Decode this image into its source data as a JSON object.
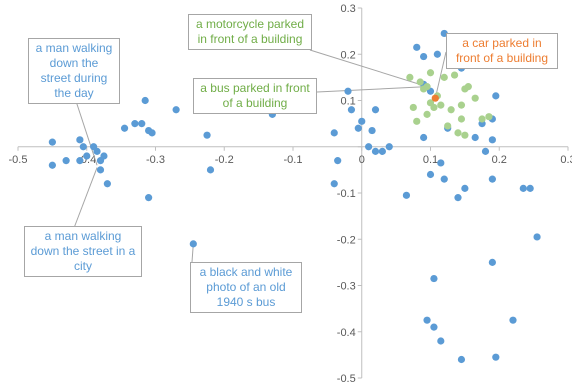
{
  "colors": {
    "blue": "#5b9bd5",
    "green": "#a9d18e",
    "orange": "#ed7d31",
    "axis": "#bfbfbf",
    "label_green": "#70ad47"
  },
  "chart_data": {
    "type": "scatter",
    "title": "",
    "xlabel": "",
    "ylabel": "",
    "xlim": [
      -0.5,
      0.3
    ],
    "ylim": [
      -0.5,
      0.3
    ],
    "grid": false,
    "x_ticks": [
      "-0.5",
      "-0.4",
      "-0.3",
      "-0.2",
      "-0.1",
      "0",
      "0.1",
      "0.2",
      "0.3"
    ],
    "y_ticks": [
      "0.3",
      "0.2",
      "0.1",
      "0",
      "-0.1",
      "-0.2",
      "-0.3",
      "-0.4",
      "-0.5"
    ],
    "series": [
      {
        "color": "#5b9bd5",
        "points": [
          [
            -0.45,
            0.01
          ],
          [
            -0.45,
            -0.04
          ],
          [
            -0.43,
            -0.03
          ],
          [
            -0.41,
            0.015
          ],
          [
            -0.41,
            -0.03
          ],
          [
            -0.405,
            0.0
          ],
          [
            -0.4,
            -0.02
          ],
          [
            -0.39,
            0.0
          ],
          [
            -0.385,
            -0.01
          ],
          [
            -0.38,
            -0.05
          ],
          [
            -0.38,
            -0.03
          ],
          [
            -0.375,
            -0.02
          ],
          [
            -0.37,
            -0.08
          ],
          [
            -0.345,
            0.04
          ],
          [
            -0.33,
            0.05
          ],
          [
            -0.32,
            0.05
          ],
          [
            -0.315,
            0.1
          ],
          [
            -0.31,
            0.035
          ],
          [
            -0.305,
            0.03
          ],
          [
            -0.31,
            -0.11
          ],
          [
            -0.27,
            0.08
          ],
          [
            -0.245,
            -0.21
          ],
          [
            -0.225,
            0.025
          ],
          [
            -0.22,
            -0.05
          ],
          [
            -0.13,
            0.07
          ],
          [
            -0.04,
            0.03
          ],
          [
            -0.04,
            -0.08
          ],
          [
            -0.035,
            -0.03
          ],
          [
            -0.02,
            0.12
          ],
          [
            -0.015,
            0.08
          ],
          [
            -0.005,
            0.04
          ],
          [
            0.0,
            0.055
          ],
          [
            0.01,
            0.0
          ],
          [
            0.015,
            0.035
          ],
          [
            0.02,
            -0.01
          ],
          [
            0.02,
            0.08
          ],
          [
            0.03,
            -0.01
          ],
          [
            0.04,
            0.0
          ],
          [
            0.065,
            -0.105
          ],
          [
            0.08,
            0.215
          ],
          [
            0.09,
            0.135
          ],
          [
            0.09,
            0.195
          ],
          [
            0.09,
            0.02
          ],
          [
            0.1,
            -0.06
          ],
          [
            0.1,
            0.12
          ],
          [
            0.11,
            0.2
          ],
          [
            0.115,
            -0.035
          ],
          [
            0.12,
            0.245
          ],
          [
            0.12,
            -0.07
          ],
          [
            0.125,
            0.04
          ],
          [
            0.14,
            -0.11
          ],
          [
            0.145,
            0.17
          ],
          [
            0.15,
            -0.09
          ],
          [
            0.165,
            0.02
          ],
          [
            0.175,
            0.05
          ],
          [
            0.18,
            -0.01
          ],
          [
            0.19,
            -0.07
          ],
          [
            0.19,
            0.015
          ],
          [
            0.19,
            0.06
          ],
          [
            0.195,
            0.11
          ],
          [
            0.235,
            -0.09
          ],
          [
            0.245,
            -0.09
          ],
          [
            0.255,
            -0.195
          ],
          [
            0.22,
            -0.375
          ],
          [
            0.19,
            -0.25
          ],
          [
            0.195,
            -0.455
          ],
          [
            0.145,
            -0.46
          ],
          [
            0.105,
            -0.285
          ],
          [
            0.095,
            -0.375
          ],
          [
            0.105,
            -0.39
          ],
          [
            0.115,
            -0.42
          ]
        ]
      },
      {
        "color": "#a9d18e",
        "points": [
          [
            0.07,
            0.15
          ],
          [
            0.075,
            0.085
          ],
          [
            0.08,
            0.055
          ],
          [
            0.085,
            0.14
          ],
          [
            0.09,
            0.125
          ],
          [
            0.095,
            0.07
          ],
          [
            0.095,
            0.13
          ],
          [
            0.1,
            0.16
          ],
          [
            0.1,
            0.095
          ],
          [
            0.105,
            0.085
          ],
          [
            0.11,
            0.11
          ],
          [
            0.115,
            0.09
          ],
          [
            0.12,
            0.15
          ],
          [
            0.125,
            0.045
          ],
          [
            0.13,
            0.08
          ],
          [
            0.135,
            0.155
          ],
          [
            0.14,
            0.03
          ],
          [
            0.145,
            0.09
          ],
          [
            0.145,
            0.06
          ],
          [
            0.15,
            0.125
          ],
          [
            0.15,
            0.025
          ],
          [
            0.155,
            0.13
          ],
          [
            0.165,
            0.105
          ],
          [
            0.175,
            0.06
          ],
          [
            0.185,
            0.065
          ]
        ]
      },
      {
        "color": "#ed7d31",
        "points": [
          [
            0.107,
            0.105
          ]
        ]
      }
    ],
    "annotations": [
      {
        "text": "a man walking down the street during the day",
        "color": "#5b9bd5"
      },
      {
        "text": "a man walking down the street in a city",
        "color": "#5b9bd5"
      },
      {
        "text": "a black and white photo of an old 1940 s bus",
        "color": "#5b9bd5"
      },
      {
        "text": "a motorcycle parked in front of a building",
        "color": "#70ad47"
      },
      {
        "text": "a bus parked in front of a building",
        "color": "#70ad47"
      },
      {
        "text": "a car parked in front of a building",
        "color": "#ed7d31"
      }
    ]
  }
}
